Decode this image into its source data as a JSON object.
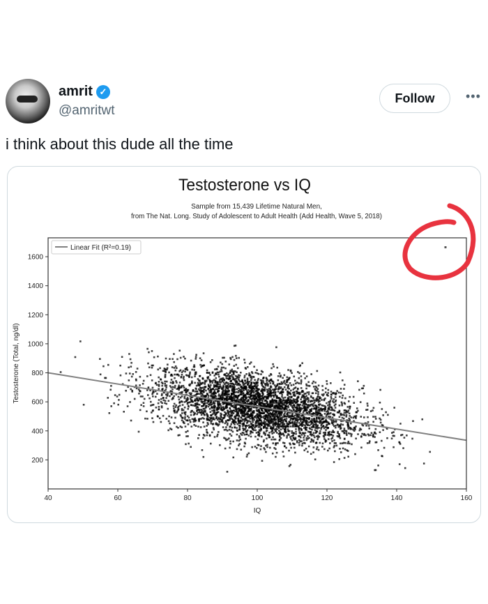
{
  "tweet": {
    "display_name": "amrit",
    "verified": true,
    "handle": "@amritwt",
    "follow_label": "Follow",
    "more_icon": "more-horizontal-icon",
    "text": "i think about this dude all the time",
    "accent_color": "#1d9bf0"
  },
  "chart_data": {
    "type": "scatter",
    "title": "Testosterone vs IQ",
    "subtitle_line1": "Sample from 15,439 Lifetime Natural Men,",
    "subtitle_line2": "from The Nat. Long. Study of Adolescent to Adult Health (Add Health, Wave 5, 2018)",
    "xlabel": "IQ",
    "ylabel": "Testosterone (Total, ng/dl)",
    "xlim": [
      40,
      160
    ],
    "ylim": [
      0,
      1730
    ],
    "xticks": [
      40,
      60,
      80,
      100,
      120,
      140,
      160
    ],
    "yticks": [
      200,
      400,
      600,
      800,
      1000,
      1200,
      1400,
      1600
    ],
    "legend": {
      "label": "Linear Fit (R²=0.19)",
      "placement": "top-left"
    },
    "fit_line": {
      "x": [
        40,
        160
      ],
      "y": [
        800,
        335
      ],
      "color": "#808080"
    },
    "marker_color": "#000000",
    "outlier": {
      "x": 154,
      "y": 1665
    },
    "annotation": {
      "type": "hand-drawn circle around outlier",
      "color": "#e8333f"
    }
  }
}
